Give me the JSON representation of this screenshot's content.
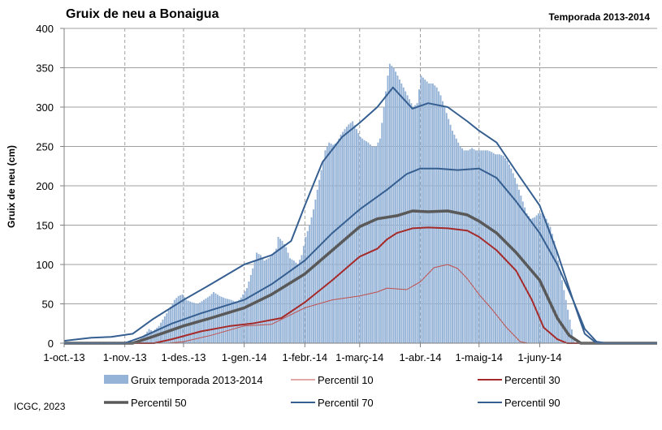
{
  "header": {
    "title": "Gruix de neu a Bonaigua",
    "season": "Temporada 2013-2014"
  },
  "footer": {
    "credit": "ICGC, 2023"
  },
  "colors": {
    "snow_fill": "#95b3d7",
    "p10": "#c0504d",
    "p30": "#a52a2a",
    "p50": "#595959",
    "p70": "#365f91",
    "p90": "#365f91",
    "grid": "#a0a0a0"
  },
  "chart_data": {
    "type": "area",
    "title": "Gruix de neu a Bonaigua",
    "subtitle": "Temporada 2013-2014",
    "ylabel": "Gruix de neu (cm)",
    "xlabel": "",
    "ylim": [
      0,
      400
    ],
    "y_ticks": [
      0,
      50,
      100,
      150,
      200,
      250,
      300,
      350,
      400
    ],
    "x_start": "2013-10-01",
    "x_end": "2014-07-31",
    "x_ticks": [
      {
        "date": "2013-10-01",
        "label": "1-oct.-13"
      },
      {
        "date": "2013-11-01",
        "label": "1-nov.-13"
      },
      {
        "date": "2013-12-01",
        "label": "1-des.-13"
      },
      {
        "date": "2014-01-01",
        "label": "1-gen.-14"
      },
      {
        "date": "2014-02-01",
        "label": "1-febr.-14"
      },
      {
        "date": "2014-03-01",
        "label": "1-març-14"
      },
      {
        "date": "2014-04-01",
        "label": "1-abr.-14"
      },
      {
        "date": "2014-05-01",
        "label": "1-maig-14"
      },
      {
        "date": "2014-06-01",
        "label": "1-juny-14"
      }
    ],
    "grid": true,
    "legend_position": "bottom",
    "series": [
      {
        "name": "Gruix temporada 2013-2014",
        "style": "bars",
        "points": [
          [
            "2013-10-01",
            0
          ],
          [
            "2013-11-05",
            0
          ],
          [
            "2013-11-10",
            8
          ],
          [
            "2013-11-13",
            18
          ],
          [
            "2013-11-15",
            15
          ],
          [
            "2013-11-18",
            22
          ],
          [
            "2013-11-20",
            30
          ],
          [
            "2013-11-23",
            42
          ],
          [
            "2013-11-26",
            55
          ],
          [
            "2013-11-28",
            60
          ],
          [
            "2013-11-30",
            62
          ],
          [
            "2013-12-02",
            55
          ],
          [
            "2013-12-05",
            52
          ],
          [
            "2013-12-08",
            50
          ],
          [
            "2013-12-11",
            55
          ],
          [
            "2013-12-14",
            60
          ],
          [
            "2013-12-16",
            65
          ],
          [
            "2013-12-19",
            60
          ],
          [
            "2013-12-22",
            57
          ],
          [
            "2013-12-25",
            55
          ],
          [
            "2013-12-28",
            52
          ],
          [
            "2013-12-30",
            58
          ],
          [
            "2014-01-02",
            70
          ],
          [
            "2014-01-05",
            95
          ],
          [
            "2014-01-07",
            115
          ],
          [
            "2014-01-09",
            112
          ],
          [
            "2014-01-11",
            105
          ],
          [
            "2014-01-13",
            108
          ],
          [
            "2014-01-15",
            112
          ],
          [
            "2014-01-17",
            120
          ],
          [
            "2014-01-18",
            135
          ],
          [
            "2014-01-20",
            130
          ],
          [
            "2014-01-22",
            122
          ],
          [
            "2014-01-24",
            108
          ],
          [
            "2014-01-26",
            105
          ],
          [
            "2014-01-28",
            100
          ],
          [
            "2014-01-30",
            112
          ],
          [
            "2014-02-01",
            135
          ],
          [
            "2014-02-03",
            150
          ],
          [
            "2014-02-05",
            170
          ],
          [
            "2014-02-07",
            195
          ],
          [
            "2014-02-09",
            220
          ],
          [
            "2014-02-11",
            245
          ],
          [
            "2014-02-13",
            255
          ],
          [
            "2014-02-15",
            252
          ],
          [
            "2014-02-17",
            255
          ],
          [
            "2014-02-19",
            265
          ],
          [
            "2014-02-21",
            272
          ],
          [
            "2014-02-23",
            278
          ],
          [
            "2014-02-25",
            282
          ],
          [
            "2014-02-27",
            272
          ],
          [
            "2014-03-01",
            262
          ],
          [
            "2014-03-03",
            258
          ],
          [
            "2014-03-05",
            255
          ],
          [
            "2014-03-07",
            250
          ],
          [
            "2014-03-09",
            250
          ],
          [
            "2014-03-11",
            260
          ],
          [
            "2014-03-13",
            300
          ],
          [
            "2014-03-15",
            340
          ],
          [
            "2014-03-16",
            355
          ],
          [
            "2014-03-18",
            350
          ],
          [
            "2014-03-20",
            340
          ],
          [
            "2014-03-22",
            330
          ],
          [
            "2014-03-24",
            320
          ],
          [
            "2014-03-26",
            310
          ],
          [
            "2014-03-28",
            300
          ],
          [
            "2014-03-30",
            305
          ],
          [
            "2014-04-01",
            340
          ],
          [
            "2014-04-03",
            335
          ],
          [
            "2014-04-05",
            330
          ],
          [
            "2014-04-07",
            330
          ],
          [
            "2014-04-09",
            325
          ],
          [
            "2014-04-11",
            315
          ],
          [
            "2014-04-13",
            300
          ],
          [
            "2014-04-15",
            285
          ],
          [
            "2014-04-17",
            270
          ],
          [
            "2014-04-19",
            260
          ],
          [
            "2014-04-21",
            250
          ],
          [
            "2014-04-23",
            245
          ],
          [
            "2014-04-25",
            245
          ],
          [
            "2014-04-27",
            248
          ],
          [
            "2014-04-29",
            245
          ],
          [
            "2014-05-01",
            245
          ],
          [
            "2014-05-03",
            245
          ],
          [
            "2014-05-05",
            245
          ],
          [
            "2014-05-07",
            243
          ],
          [
            "2014-05-09",
            240
          ],
          [
            "2014-05-11",
            240
          ],
          [
            "2014-05-13",
            238
          ],
          [
            "2014-05-15",
            232
          ],
          [
            "2014-05-17",
            222
          ],
          [
            "2014-05-19",
            210
          ],
          [
            "2014-05-21",
            195
          ],
          [
            "2014-05-23",
            180
          ],
          [
            "2014-05-25",
            165
          ],
          [
            "2014-05-27",
            158
          ],
          [
            "2014-05-29",
            160
          ],
          [
            "2014-05-31",
            165
          ],
          [
            "2014-06-02",
            165
          ],
          [
            "2014-06-04",
            158
          ],
          [
            "2014-06-06",
            148
          ],
          [
            "2014-06-08",
            130
          ],
          [
            "2014-06-10",
            105
          ],
          [
            "2014-06-12",
            80
          ],
          [
            "2014-06-14",
            55
          ],
          [
            "2014-06-16",
            30
          ],
          [
            "2014-06-18",
            5
          ],
          [
            "2014-06-19",
            0
          ],
          [
            "2014-07-31",
            0
          ]
        ]
      },
      {
        "name": "Percentil 10",
        "style": "line-thin",
        "points": [
          [
            "2013-10-01",
            0
          ],
          [
            "2013-11-23",
            0
          ],
          [
            "2013-12-01",
            2
          ],
          [
            "2013-12-15",
            10
          ],
          [
            "2014-01-01",
            22
          ],
          [
            "2014-01-15",
            24
          ],
          [
            "2014-02-01",
            45
          ],
          [
            "2014-02-15",
            55
          ],
          [
            "2014-03-01",
            60
          ],
          [
            "2014-03-10",
            65
          ],
          [
            "2014-03-15",
            70
          ],
          [
            "2014-03-25",
            68
          ],
          [
            "2014-04-01",
            78
          ],
          [
            "2014-04-08",
            96
          ],
          [
            "2014-04-15",
            100
          ],
          [
            "2014-04-20",
            95
          ],
          [
            "2014-04-25",
            82
          ],
          [
            "2014-05-01",
            62
          ],
          [
            "2014-05-08",
            42
          ],
          [
            "2014-05-15",
            20
          ],
          [
            "2014-05-22",
            2
          ],
          [
            "2014-05-26",
            0
          ],
          [
            "2014-07-31",
            0
          ]
        ]
      },
      {
        "name": "Percentil 30",
        "style": "line",
        "points": [
          [
            "2013-10-01",
            0
          ],
          [
            "2013-11-16",
            0
          ],
          [
            "2013-11-25",
            5
          ],
          [
            "2013-12-10",
            15
          ],
          [
            "2013-12-25",
            22
          ],
          [
            "2014-01-05",
            25
          ],
          [
            "2014-01-20",
            32
          ],
          [
            "2014-02-01",
            52
          ],
          [
            "2014-02-15",
            80
          ],
          [
            "2014-03-01",
            110
          ],
          [
            "2014-03-10",
            120
          ],
          [
            "2014-03-15",
            132
          ],
          [
            "2014-03-20",
            140
          ],
          [
            "2014-03-28",
            146
          ],
          [
            "2014-04-05",
            147
          ],
          [
            "2014-04-15",
            146
          ],
          [
            "2014-04-25",
            143
          ],
          [
            "2014-05-01",
            135
          ],
          [
            "2014-05-10",
            118
          ],
          [
            "2014-05-20",
            92
          ],
          [
            "2014-05-28",
            55
          ],
          [
            "2014-06-03",
            20
          ],
          [
            "2014-06-10",
            5
          ],
          [
            "2014-06-15",
            0
          ],
          [
            "2014-07-31",
            0
          ]
        ]
      },
      {
        "name": "Percentil 50",
        "style": "line-thick",
        "points": [
          [
            "2013-10-01",
            0
          ],
          [
            "2013-11-05",
            0
          ],
          [
            "2013-11-15",
            8
          ],
          [
            "2013-12-01",
            22
          ],
          [
            "2013-12-15",
            32
          ],
          [
            "2014-01-01",
            45
          ],
          [
            "2014-01-15",
            62
          ],
          [
            "2014-02-01",
            88
          ],
          [
            "2014-02-15",
            118
          ],
          [
            "2014-03-01",
            148
          ],
          [
            "2014-03-10",
            158
          ],
          [
            "2014-03-20",
            162
          ],
          [
            "2014-03-28",
            168
          ],
          [
            "2014-04-05",
            167
          ],
          [
            "2014-04-15",
            168
          ],
          [
            "2014-04-25",
            163
          ],
          [
            "2014-05-01",
            155
          ],
          [
            "2014-05-10",
            140
          ],
          [
            "2014-05-20",
            115
          ],
          [
            "2014-06-01",
            80
          ],
          [
            "2014-06-10",
            32
          ],
          [
            "2014-06-16",
            10
          ],
          [
            "2014-06-22",
            0
          ],
          [
            "2014-07-31",
            0
          ]
        ]
      },
      {
        "name": "Percentil 70",
        "style": "line",
        "points": [
          [
            "2013-10-01",
            0
          ],
          [
            "2013-11-01",
            0
          ],
          [
            "2013-11-10",
            8
          ],
          [
            "2013-11-25",
            25
          ],
          [
            "2013-12-10",
            38
          ],
          [
            "2014-01-01",
            55
          ],
          [
            "2014-01-15",
            75
          ],
          [
            "2014-02-01",
            105
          ],
          [
            "2014-02-15",
            140
          ],
          [
            "2014-03-01",
            170
          ],
          [
            "2014-03-15",
            195
          ],
          [
            "2014-03-25",
            215
          ],
          [
            "2014-04-01",
            222
          ],
          [
            "2014-04-10",
            222
          ],
          [
            "2014-04-20",
            220
          ],
          [
            "2014-05-01",
            222
          ],
          [
            "2014-05-10",
            210
          ],
          [
            "2014-05-20",
            180
          ],
          [
            "2014-06-01",
            140
          ],
          [
            "2014-06-10",
            100
          ],
          [
            "2014-06-18",
            55
          ],
          [
            "2014-06-24",
            18
          ],
          [
            "2014-06-30",
            2
          ],
          [
            "2014-07-05",
            0
          ],
          [
            "2014-07-31",
            0
          ]
        ]
      },
      {
        "name": "Percentil 90",
        "style": "line",
        "points": [
          [
            "2013-10-01",
            3
          ],
          [
            "2013-10-08",
            5
          ],
          [
            "2013-10-15",
            7
          ],
          [
            "2013-10-25",
            8
          ],
          [
            "2013-11-05",
            12
          ],
          [
            "2013-11-15",
            30
          ],
          [
            "2013-12-01",
            55
          ],
          [
            "2013-12-15",
            75
          ],
          [
            "2014-01-01",
            100
          ],
          [
            "2014-01-15",
            112
          ],
          [
            "2014-01-25",
            130
          ],
          [
            "2014-02-01",
            175
          ],
          [
            "2014-02-10",
            230
          ],
          [
            "2014-02-20",
            262
          ],
          [
            "2014-03-01",
            280
          ],
          [
            "2014-03-10",
            300
          ],
          [
            "2014-03-18",
            325
          ],
          [
            "2014-03-28",
            298
          ],
          [
            "2014-04-05",
            305
          ],
          [
            "2014-04-15",
            300
          ],
          [
            "2014-04-25",
            282
          ],
          [
            "2014-05-01",
            270
          ],
          [
            "2014-05-10",
            255
          ],
          [
            "2014-05-20",
            218
          ],
          [
            "2014-06-01",
            175
          ],
          [
            "2014-06-10",
            115
          ],
          [
            "2014-06-18",
            55
          ],
          [
            "2014-06-24",
            12
          ],
          [
            "2014-06-30",
            0
          ],
          [
            "2014-07-31",
            0
          ]
        ]
      }
    ]
  }
}
